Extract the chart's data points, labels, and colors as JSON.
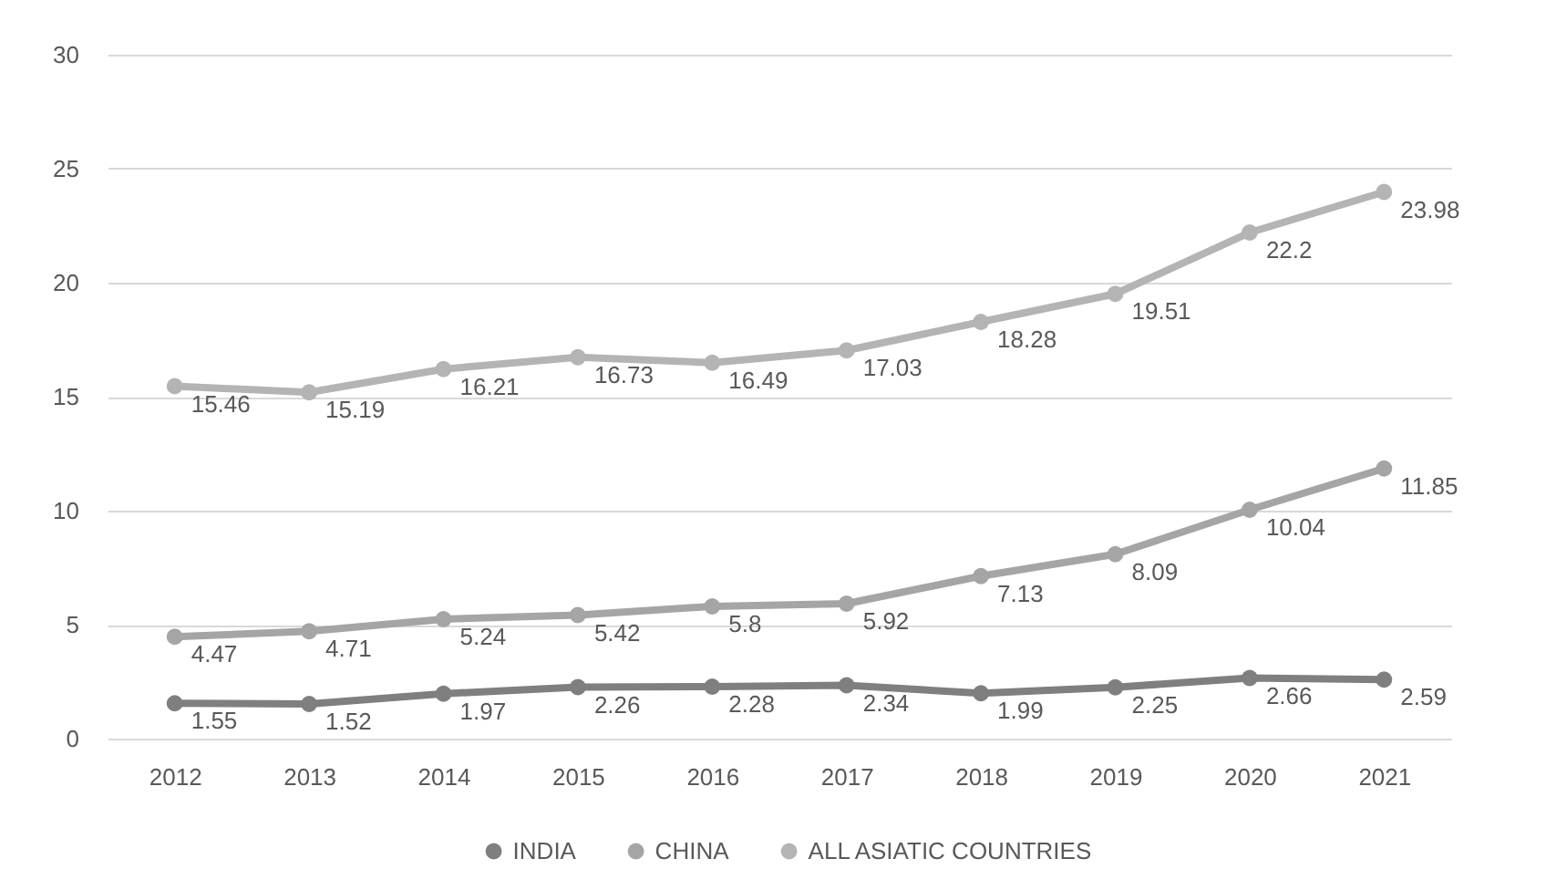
{
  "chart_data": {
    "type": "line",
    "categories": [
      "2012",
      "2013",
      "2014",
      "2015",
      "2016",
      "2017",
      "2018",
      "2019",
      "2020",
      "2021"
    ],
    "series": [
      {
        "name": "INDIA",
        "color": "#7f7f7f",
        "values": [
          1.55,
          1.52,
          1.97,
          2.26,
          2.28,
          2.34,
          1.99,
          2.25,
          2.66,
          2.59
        ]
      },
      {
        "name": "CHINA",
        "color": "#a5a5a5",
        "values": [
          4.47,
          4.71,
          5.24,
          5.42,
          5.8,
          5.92,
          7.13,
          8.09,
          10.04,
          11.85
        ]
      },
      {
        "name": "ALL ASIATIC COUNTRIES",
        "color": "#b4b4b4",
        "values": [
          15.46,
          15.19,
          16.21,
          16.73,
          16.49,
          17.03,
          18.28,
          19.51,
          22.2,
          23.98
        ]
      }
    ],
    "ylim": [
      0,
      30
    ],
    "yticks": [
      0,
      5,
      10,
      15,
      20,
      25,
      30
    ],
    "grid": "y",
    "legend": "bottom",
    "marker": "circle",
    "data_labels": true
  }
}
